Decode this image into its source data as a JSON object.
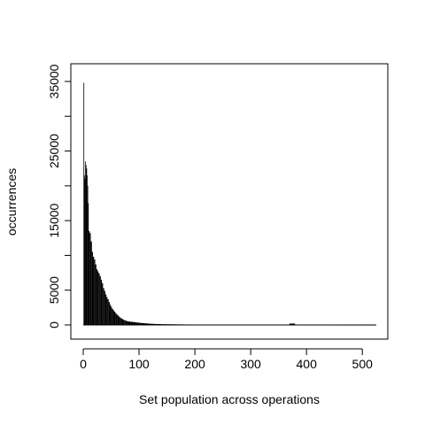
{
  "chart_data": {
    "type": "bar",
    "title": "",
    "xlabel": "Set population across operations",
    "ylabel": "occurrences",
    "xlim": [
      0,
      525
    ],
    "ylim": [
      0,
      35000
    ],
    "x_ticks": [
      0,
      100,
      200,
      300,
      400,
      500
    ],
    "x_tick_labels": [
      "0",
      "100",
      "200",
      "300",
      "400",
      "500"
    ],
    "y_ticks": [
      0,
      5000,
      15000,
      25000,
      35000
    ],
    "y_tick_labels": [
      "0",
      "5000",
      "15000",
      "25000",
      "35000"
    ],
    "grid": false,
    "bar_color": "#000000",
    "series": [
      {
        "x": [
          1,
          2,
          3,
          4,
          5,
          6,
          7,
          8,
          9,
          10,
          12,
          14,
          16,
          18,
          20,
          22,
          24,
          26,
          28,
          30,
          32,
          34,
          36,
          38,
          40,
          42,
          44,
          46,
          48,
          50,
          52,
          54,
          56,
          58,
          60,
          62,
          64,
          66,
          68,
          70,
          72,
          74,
          76,
          78,
          80,
          85,
          90,
          95,
          100,
          105,
          110,
          115,
          120,
          125,
          130,
          140,
          150,
          160,
          170,
          180,
          190,
          200,
          210,
          220,
          230,
          240,
          250,
          260,
          270,
          280,
          290,
          300,
          320,
          340,
          360,
          370,
          380,
          400,
          420,
          440,
          460,
          480,
          500,
          520
        ],
        "values": [
          34800,
          21500,
          21000,
          23500,
          23000,
          22500,
          21500,
          20000,
          17500,
          13500,
          13200,
          12000,
          10500,
          9800,
          9400,
          8700,
          8000,
          7700,
          7400,
          7000,
          6500,
          6000,
          5300,
          4900,
          4400,
          4000,
          3700,
          3300,
          2900,
          2600,
          2300,
          2100,
          1900,
          1700,
          1500,
          1350,
          1200,
          1050,
          950,
          850,
          750,
          680,
          620,
          560,
          500,
          450,
          400,
          350,
          300,
          260,
          230,
          200,
          170,
          150,
          130,
          110,
          100,
          90,
          80,
          70,
          65,
          60,
          55,
          50,
          45,
          40,
          35,
          32,
          30,
          28,
          25,
          22,
          20,
          18,
          16,
          200,
          14,
          12,
          10,
          9,
          8,
          7,
          6,
          5
        ]
      }
    ]
  }
}
